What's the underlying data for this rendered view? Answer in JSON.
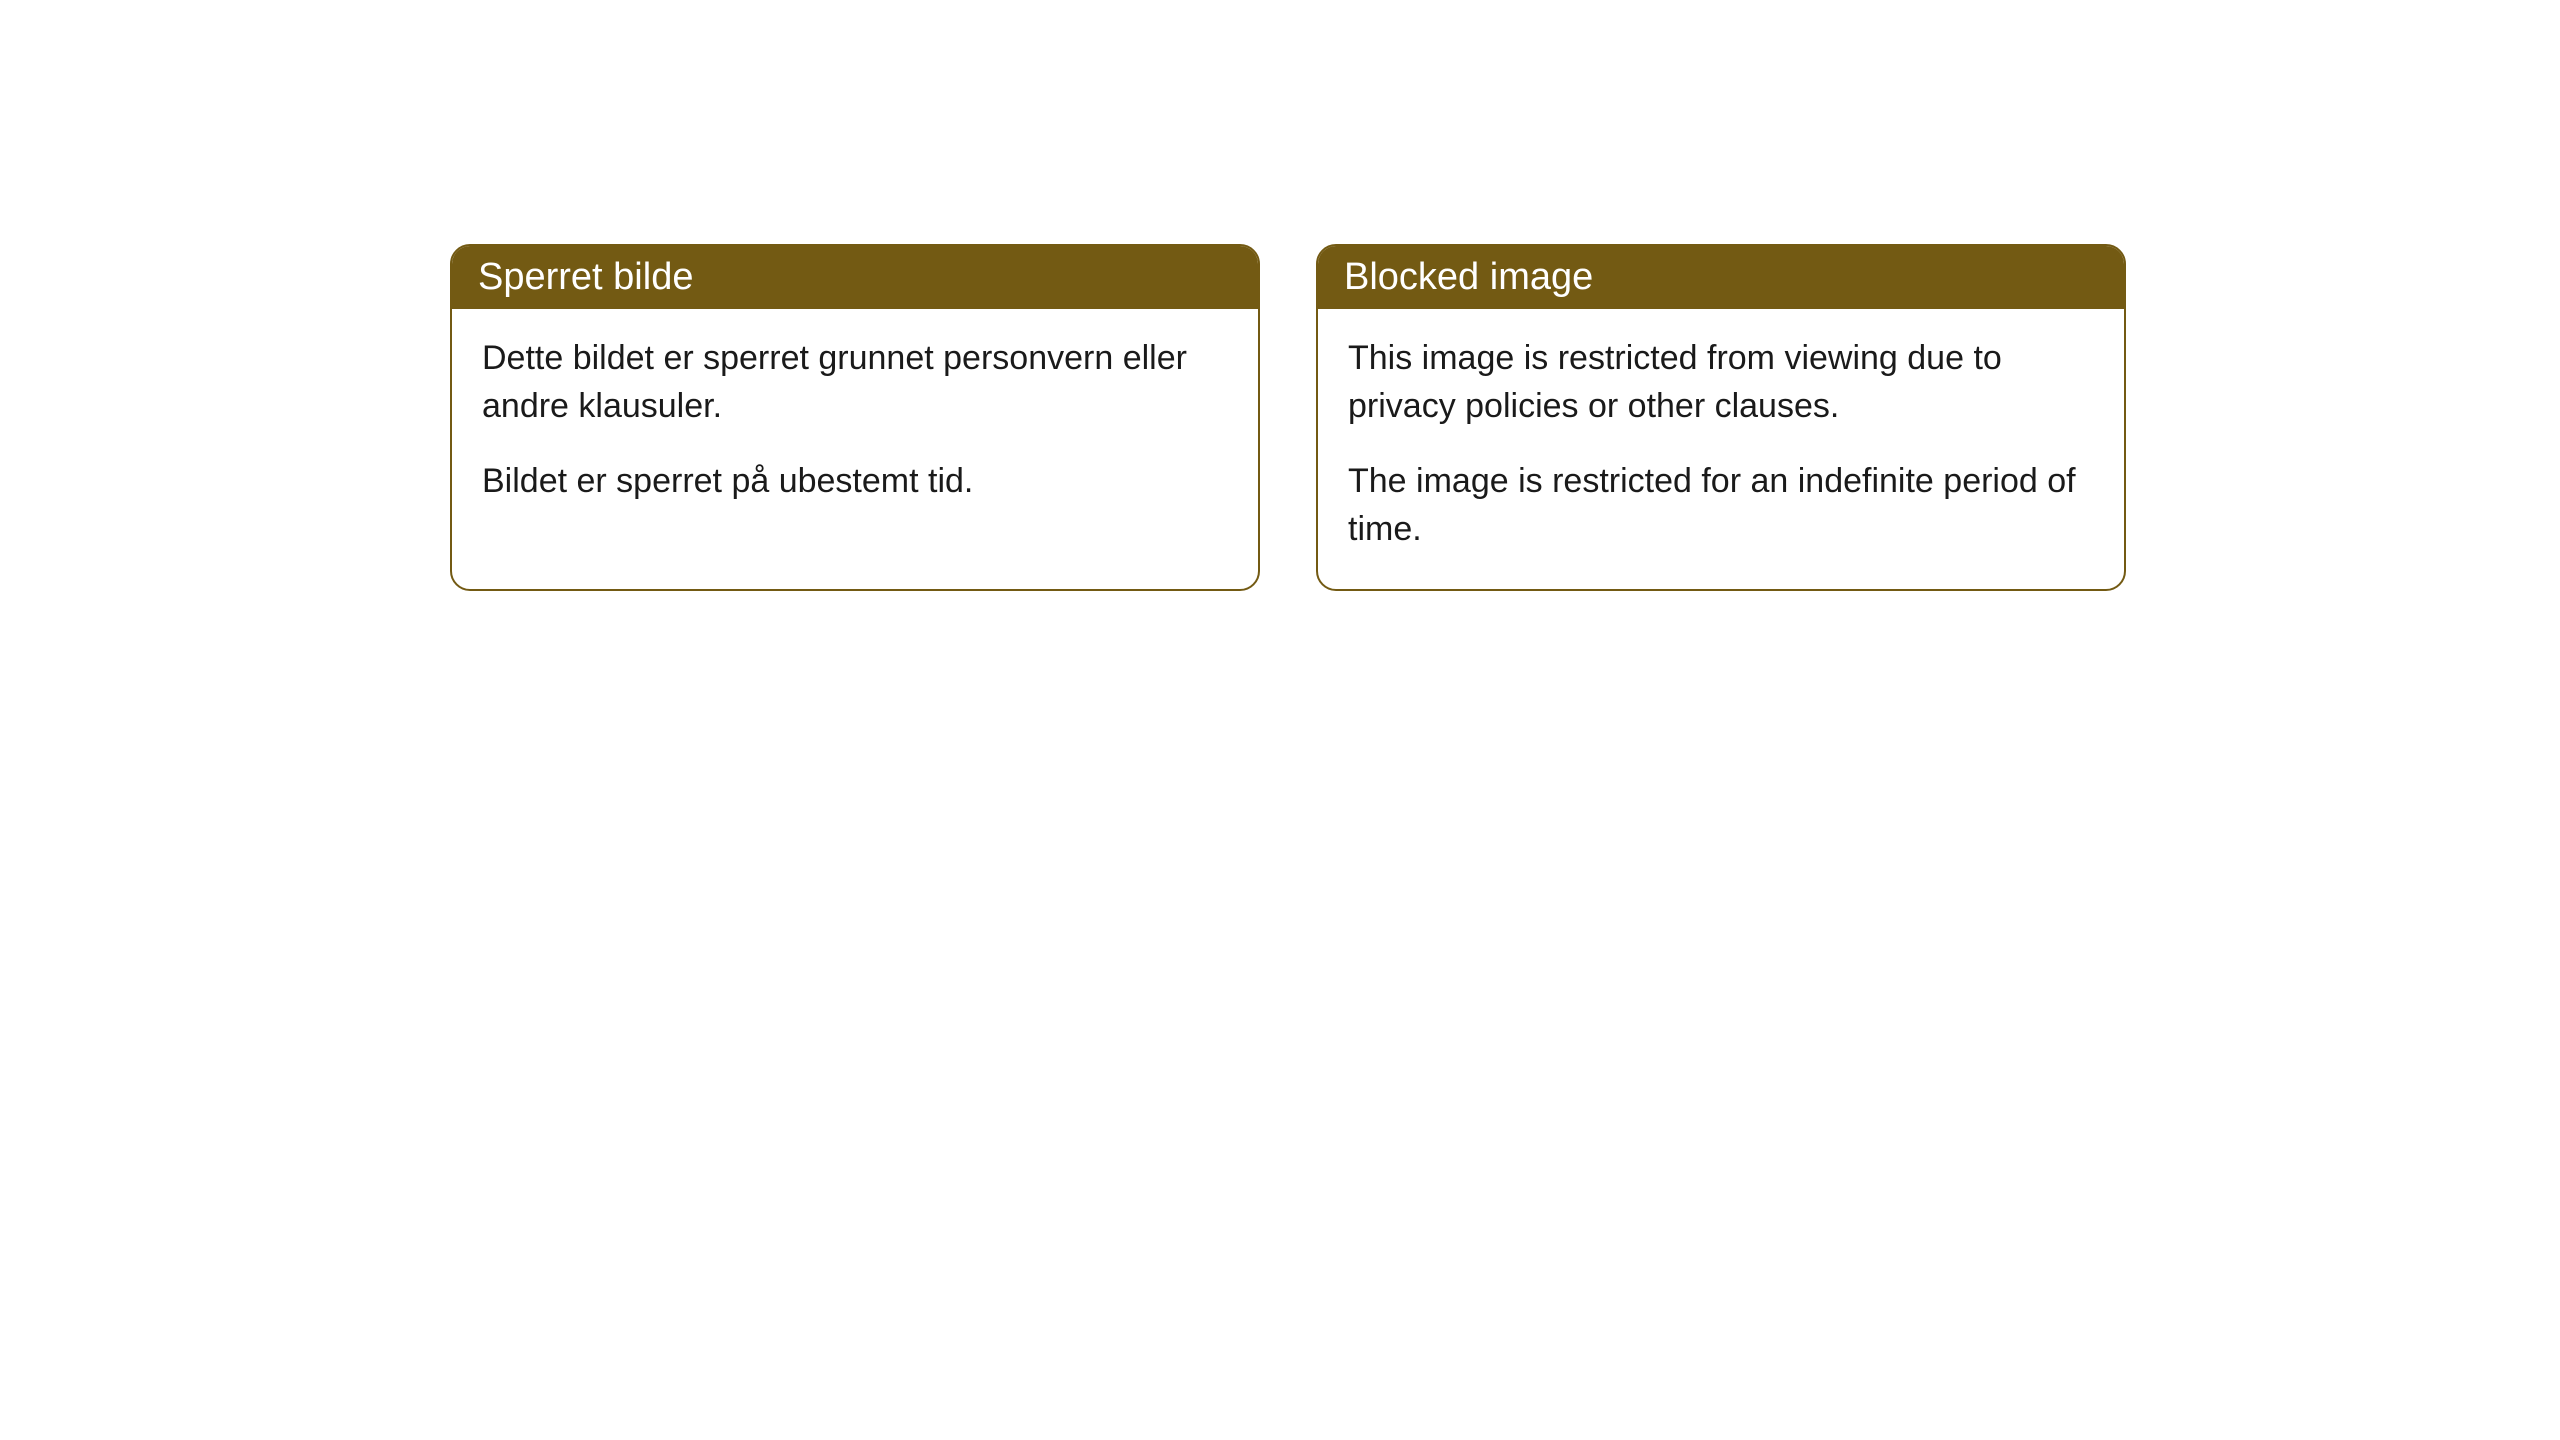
{
  "cards": [
    {
      "title": "Sperret bilde",
      "paragraph1": "Dette bildet er sperret grunnet personvern eller andre klausuler.",
      "paragraph2": "Bildet er sperret på ubestemt tid."
    },
    {
      "title": "Blocked image",
      "paragraph1": "This image is restricted from viewing due to privacy policies or other clauses.",
      "paragraph2": "The image is restricted for an indefinite period of time."
    }
  ],
  "styling": {
    "header_bg_color": "#735a13",
    "header_text_color": "#ffffff",
    "border_color": "#735a13",
    "body_bg_color": "#ffffff",
    "body_text_color": "#1a1a1a",
    "border_radius": 20,
    "title_fontsize": 38,
    "body_fontsize": 34
  }
}
